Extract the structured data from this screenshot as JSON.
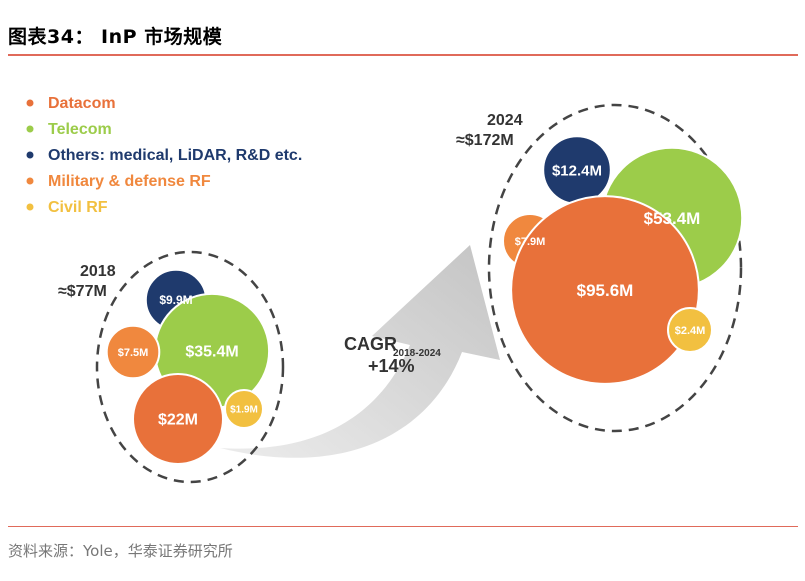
{
  "header": {
    "title": "图表34：  InP 市场规模"
  },
  "footer": {
    "source": "资料来源：Yole，华泰证券研究所"
  },
  "chart_data": {
    "type": "bubble",
    "title": "InP market size",
    "legend": [
      {
        "name": "Datacom",
        "color": "#e8713a"
      },
      {
        "name": "Telecom",
        "color": "#9ccc4a"
      },
      {
        "name": "Others: medical, LiDAR, R&D etc.",
        "color": "#1f3a6d"
      },
      {
        "name": "Military & defense RF",
        "color": "#f0883e"
      },
      {
        "name": "Civil  RF",
        "color": "#f2c040"
      }
    ],
    "groups": [
      {
        "year": "2018",
        "total": "≈$77M",
        "bubbles": [
          {
            "segment": "Others: medical, LiDAR, R&D etc.",
            "label": "$9.9M",
            "value": 9.9
          },
          {
            "segment": "Telecom",
            "label": "$35.4M",
            "value": 35.4
          },
          {
            "segment": "Military & defense RF",
            "label": "$7.5M",
            "value": 7.5
          },
          {
            "segment": "Datacom",
            "label": "$22M",
            "value": 22
          },
          {
            "segment": "Civil  RF",
            "label": "$1.9M",
            "value": 1.9
          }
        ]
      },
      {
        "year": "2024",
        "total": "≈$172M",
        "bubbles": [
          {
            "segment": "Others: medical, LiDAR, R&D etc.",
            "label": "$12.4M",
            "value": 12.4
          },
          {
            "segment": "Telecom",
            "label": "$53.4M",
            "value": 53.4
          },
          {
            "segment": "Military & defense RF",
            "label": "$7.9M",
            "value": 7.9
          },
          {
            "segment": "Datacom",
            "label": "$95.6M",
            "value": 95.6
          },
          {
            "segment": "Civil  RF",
            "label": "$2.4M",
            "value": 2.4
          }
        ]
      }
    ],
    "annotation": {
      "text": "CAGR",
      "subscript": "2018-2024",
      "value": "+14%"
    }
  }
}
